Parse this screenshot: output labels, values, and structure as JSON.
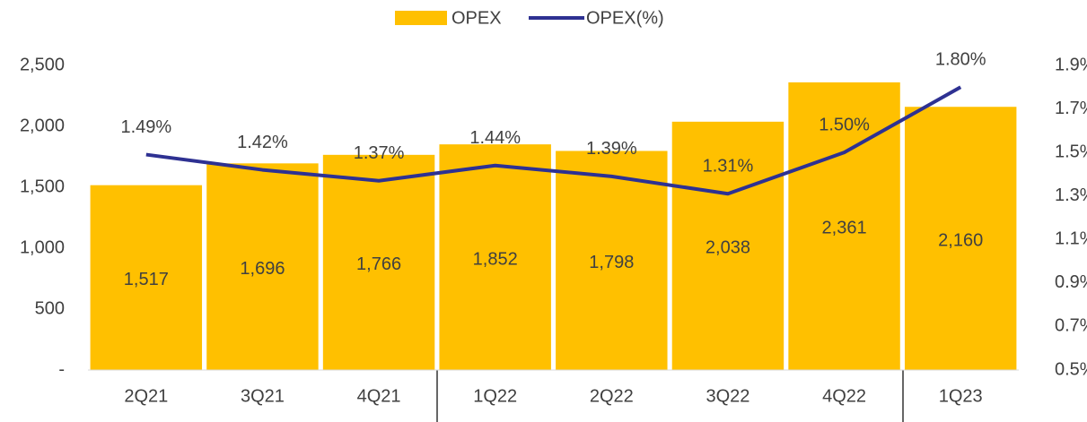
{
  "chart_data": {
    "type": "bar",
    "categories": [
      "2Q21",
      "3Q21",
      "4Q21",
      "1Q22",
      "2Q22",
      "3Q22",
      "4Q22",
      "1Q23"
    ],
    "series": [
      {
        "name": "OPEX",
        "type": "bar",
        "color": "#FFC000",
        "values": [
          1517,
          1696,
          1766,
          1852,
          1798,
          2038,
          2361,
          2160
        ],
        "value_labels": [
          "1,517",
          "1,696",
          "1,766",
          "1,852",
          "1,798",
          "2,038",
          "2,361",
          "2,160"
        ]
      },
      {
        "name": "OPEX(%)",
        "type": "line",
        "axis": "y2",
        "color": "#2E3192",
        "values": [
          1.49,
          1.42,
          1.37,
          1.44,
          1.39,
          1.31,
          1.5,
          1.8
        ],
        "value_labels": [
          "1.49%",
          "1.42%",
          "1.37%",
          "1.44%",
          "1.39%",
          "1.31%",
          "1.50%",
          "1.80%"
        ]
      }
    ],
    "ylim": [
      0,
      2500
    ],
    "yticks": [
      {
        "value": 0,
        "label": "-"
      },
      500,
      {
        "value": 1000,
        "label": "1,000"
      },
      {
        "value": 1500,
        "label": "1,500"
      },
      {
        "value": 2000,
        "label": "2,000"
      },
      {
        "value": 2500,
        "label": "2,500"
      }
    ],
    "y2lim": [
      0.5,
      1.9
    ],
    "y2ticks": [
      {
        "value": 0.5,
        "label": "0.5%"
      },
      {
        "value": 0.7,
        "label": "0.7%"
      },
      {
        "value": 0.9,
        "label": "0.9%"
      },
      {
        "value": 1.1,
        "label": "1.1%"
      },
      {
        "value": 1.3,
        "label": "1.3%"
      },
      {
        "value": 1.5,
        "label": "1.5%"
      },
      {
        "value": 1.7,
        "label": "1.7%"
      },
      {
        "value": 1.9,
        "label": "1.9%"
      }
    ],
    "legend": "top",
    "grid": false
  }
}
